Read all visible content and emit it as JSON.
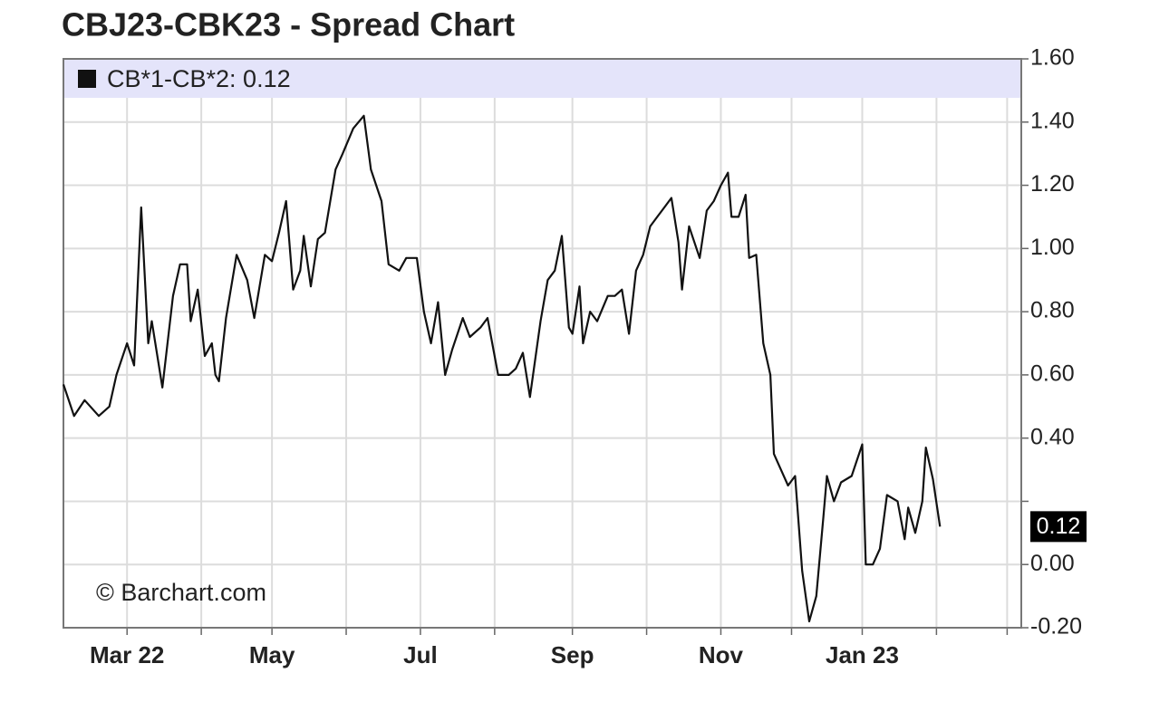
{
  "chart_data": {
    "type": "line",
    "title": "CBJ23-CBK23 - Spread Chart",
    "credit": "© Barchart.com",
    "legend_text": "CB*1-CB*2: 0.12",
    "grid": true,
    "x": [
      0,
      3,
      6,
      10,
      13,
      15,
      18,
      20,
      22,
      24,
      25,
      28,
      31,
      33,
      35,
      36,
      38,
      40,
      42,
      43,
      44,
      46,
      49,
      52,
      54,
      57,
      59,
      61,
      63,
      65,
      67,
      68,
      70,
      72,
      74,
      77,
      79,
      82,
      85,
      87,
      90,
      92,
      95,
      97,
      100,
      102,
      104,
      106,
      108,
      110,
      113,
      115,
      118,
      120,
      123,
      126,
      128,
      130,
      132,
      135,
      137,
      139,
      141,
      143,
      144,
      146,
      147,
      149,
      151,
      154,
      156,
      158,
      160,
      162,
      164,
      166,
      168,
      170,
      172,
      174,
      175,
      177,
      180,
      182,
      184,
      186,
      188,
      189,
      191,
      193,
      194,
      196,
      198,
      200,
      201,
      203,
      205,
      207,
      209,
      211,
      213,
      215,
      216,
      218,
      220,
      223,
      226,
      227,
      229,
      231,
      233,
      236,
      238,
      239,
      241,
      243,
      244,
      246,
      248
    ],
    "series": [
      {
        "name": "CB*1-CB*2",
        "color": "#111111",
        "values": [
          0.57,
          0.47,
          0.52,
          0.47,
          0.5,
          0.6,
          0.7,
          0.63,
          1.13,
          0.7,
          0.77,
          0.56,
          0.85,
          0.95,
          0.95,
          0.77,
          0.87,
          0.66,
          0.7,
          0.6,
          0.58,
          0.78,
          0.98,
          0.9,
          0.78,
          0.98,
          0.96,
          1.05,
          1.15,
          0.87,
          0.93,
          1.04,
          0.88,
          1.03,
          1.05,
          1.25,
          1.3,
          1.38,
          1.42,
          1.25,
          1.15,
          0.95,
          0.93,
          0.97,
          0.97,
          0.8,
          0.7,
          0.83,
          0.6,
          0.68,
          0.78,
          0.72,
          0.75,
          0.78,
          0.6,
          0.6,
          0.62,
          0.67,
          0.53,
          0.77,
          0.9,
          0.93,
          1.04,
          0.75,
          0.73,
          0.88,
          0.7,
          0.8,
          0.77,
          0.85,
          0.85,
          0.87,
          0.73,
          0.93,
          0.98,
          1.07,
          1.1,
          1.13,
          1.16,
          1.02,
          0.87,
          1.07,
          0.97,
          1.12,
          1.15,
          1.2,
          1.24,
          1.1,
          1.1,
          1.17,
          0.97,
          0.98,
          0.7,
          0.6,
          0.35,
          0.3,
          0.25,
          0.28,
          -0.02,
          -0.18,
          -0.1,
          0.15,
          0.28,
          0.2,
          0.26,
          0.28,
          0.38,
          0.0,
          0.0,
          0.05,
          0.22,
          0.2,
          0.08,
          0.18,
          0.1,
          0.2,
          0.37,
          0.27,
          0.12
        ]
      }
    ],
    "last_value": {
      "value": 0.12,
      "label": "0.12"
    },
    "xlim": [
      0,
      271
    ],
    "xticks": [
      {
        "value": 18,
        "label": "Mar 22"
      },
      {
        "value": 39,
        "label": null
      },
      {
        "value": 59,
        "label": "May"
      },
      {
        "value": 80,
        "label": null
      },
      {
        "value": 101,
        "label": "Jul"
      },
      {
        "value": 122,
        "label": null
      },
      {
        "value": 144,
        "label": "Sep"
      },
      {
        "value": 165,
        "label": null
      },
      {
        "value": 186,
        "label": "Nov"
      },
      {
        "value": 206,
        "label": null
      },
      {
        "value": 226,
        "label": "Jan 23"
      },
      {
        "value": 247,
        "label": null
      },
      {
        "value": 267,
        "label": null
      }
    ],
    "ylim": [
      -0.2,
      1.6
    ],
    "yticks": [
      {
        "value": -0.2,
        "label": "-0.20"
      },
      {
        "value": 0,
        "label": "0.00"
      },
      {
        "value": 0.2,
        "label": null
      },
      {
        "value": 0.4,
        "label": "0.40"
      },
      {
        "value": 0.6,
        "label": "0.60"
      },
      {
        "value": 0.8,
        "label": "0.80"
      },
      {
        "value": 1.0,
        "label": "1.00"
      },
      {
        "value": 1.2,
        "label": "1.20"
      },
      {
        "value": 1.4,
        "label": "1.40"
      },
      {
        "value": 1.6,
        "label": "1.60"
      }
    ],
    "y_axis_side": "right"
  }
}
